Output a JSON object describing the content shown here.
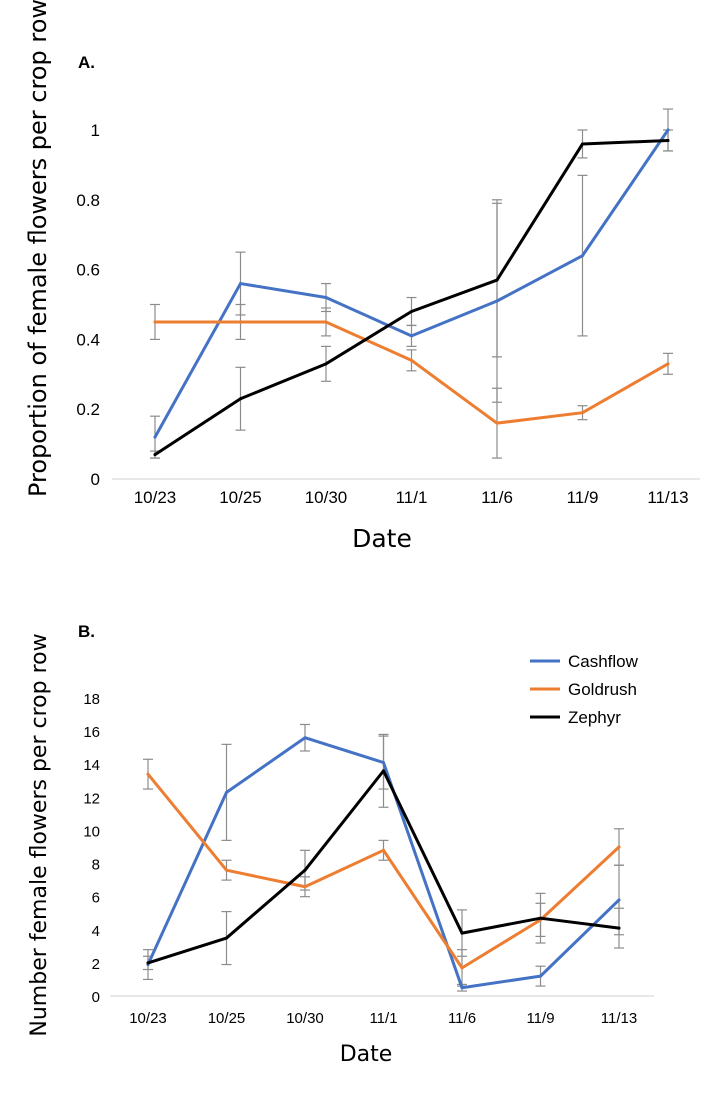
{
  "chart_data": [
    {
      "type": "line",
      "panel_label": "A.",
      "title": "",
      "xlabel": "Date",
      "ylabel": "Proportion of female flowers per crop row",
      "categories": [
        "10/23",
        "10/25",
        "10/30",
        "11/1",
        "11/6",
        "11/9",
        "11/13"
      ],
      "ylim": [
        0,
        1
      ],
      "yticks": [
        "0",
        "0.2",
        "0.4",
        "0.6",
        "0.8",
        "1"
      ],
      "yticks_values": [
        0,
        0.2,
        0.4,
        0.6,
        0.8,
        1
      ],
      "grid": false,
      "series": [
        {
          "name": "Cashflow",
          "color": "#4472c4",
          "values": [
            0.12,
            0.56,
            0.52,
            0.41,
            0.51,
            0.64,
            1.0
          ],
          "error": [
            0.06,
            0.09,
            0.04,
            0.03,
            0.29,
            0.23,
            0.06
          ]
        },
        {
          "name": "Goldrush",
          "color": "#ed7d31",
          "values": [
            0.45,
            0.45,
            0.45,
            0.34,
            0.16,
            0.19,
            0.33
          ],
          "error": [
            0.05,
            0.05,
            0.04,
            0.03,
            0.1,
            0.02,
            0.03
          ]
        },
        {
          "name": "Zephyr",
          "color": "#000000",
          "values": [
            0.07,
            0.23,
            0.33,
            0.48,
            0.57,
            0.96,
            0.97
          ],
          "error": [
            0.01,
            0.09,
            0.05,
            0.04,
            0.22,
            0.04,
            0.03
          ]
        }
      ]
    },
    {
      "type": "line",
      "panel_label": "B.",
      "title": "",
      "xlabel": "Date",
      "ylabel": "Number female flowers per crop row",
      "categories": [
        "10/23",
        "10/25",
        "10/30",
        "11/1",
        "11/6",
        "11/9",
        "11/13"
      ],
      "ylim": [
        0,
        18
      ],
      "yticks": [
        "0",
        "2",
        "4",
        "6",
        "8",
        "10",
        "12",
        "14",
        "16",
        "18"
      ],
      "yticks_values": [
        0,
        2,
        4,
        6,
        8,
        10,
        12,
        14,
        16,
        18
      ],
      "grid": false,
      "legend_position": "top-right",
      "series": [
        {
          "name": "Cashflow",
          "color": "#4472c4",
          "values": [
            1.9,
            12.3,
            15.6,
            14.1,
            0.5,
            1.2,
            5.8
          ],
          "error": [
            0.9,
            2.9,
            0.8,
            1.6,
            0.2,
            0.6,
            2.1
          ]
        },
        {
          "name": "Goldrush",
          "color": "#ed7d31",
          "values": [
            13.4,
            7.6,
            6.6,
            8.8,
            1.7,
            4.6,
            9.0
          ],
          "error": [
            0.9,
            0.6,
            0.6,
            0.6,
            1.1,
            1.0,
            1.1
          ]
        },
        {
          "name": "Zephyr",
          "color": "#000000",
          "values": [
            2.0,
            3.5,
            7.6,
            13.6,
            3.8,
            4.7,
            4.1
          ],
          "error": [
            0.4,
            1.6,
            1.2,
            2.2,
            1.4,
            1.5,
            1.2
          ]
        }
      ]
    }
  ]
}
